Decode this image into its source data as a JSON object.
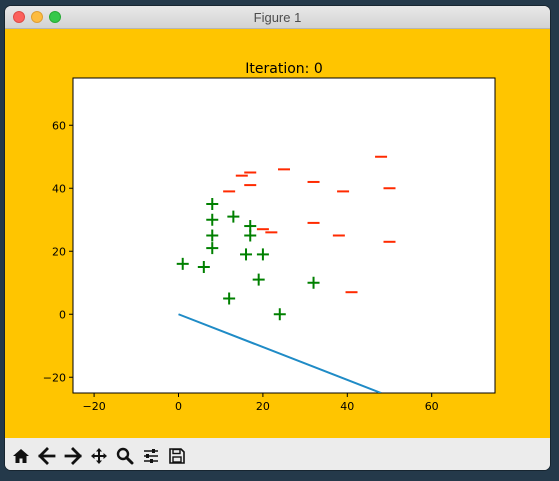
{
  "window": {
    "title": "Figure 1"
  },
  "figure": {
    "background_color": "#ffc500"
  },
  "chart_data": {
    "type": "scatter",
    "title": "Iteration: 0",
    "xlabel": "",
    "ylabel": "",
    "xlim": [
      -25,
      75
    ],
    "ylim": [
      -25,
      75
    ],
    "xticks": [
      -20,
      0,
      20,
      40,
      60
    ],
    "yticks": [
      -20,
      0,
      20,
      40,
      60
    ],
    "grid": false,
    "series": [
      {
        "marker": "_",
        "color": "#ff2a00",
        "points": [
          [
            12,
            39
          ],
          [
            15,
            44
          ],
          [
            17,
            45
          ],
          [
            17,
            41
          ],
          [
            25,
            46
          ],
          [
            32,
            42
          ],
          [
            39,
            39
          ],
          [
            48,
            50
          ],
          [
            50,
            40
          ],
          [
            20,
            27
          ],
          [
            22,
            26
          ],
          [
            32,
            29
          ],
          [
            38,
            25
          ],
          [
            50,
            23
          ],
          [
            41,
            7
          ]
        ]
      },
      {
        "marker": "+",
        "color": "#008000",
        "points": [
          [
            8,
            35
          ],
          [
            8,
            30
          ],
          [
            13,
            31
          ],
          [
            17,
            28
          ],
          [
            17,
            25
          ],
          [
            8,
            25
          ],
          [
            8,
            21
          ],
          [
            1,
            16
          ],
          [
            6,
            15
          ],
          [
            16,
            19
          ],
          [
            20,
            19
          ],
          [
            19,
            11
          ],
          [
            12,
            5
          ],
          [
            24,
            0
          ],
          [
            32,
            10
          ]
        ]
      },
      {
        "marker": "line",
        "color": "#1f8bc6",
        "points": [
          [
            0,
            0
          ],
          [
            48,
            -25
          ]
        ]
      }
    ]
  },
  "toolbar": {
    "buttons": [
      {
        "icon": "home-icon",
        "label": "Home"
      },
      {
        "icon": "arrow-left-icon",
        "label": "Back"
      },
      {
        "icon": "arrow-right-icon",
        "label": "Forward"
      },
      {
        "icon": "move-icon",
        "label": "Pan"
      },
      {
        "icon": "search-icon",
        "label": "Zoom"
      },
      {
        "icon": "sliders-icon",
        "label": "Configure subplots"
      },
      {
        "icon": "save-icon",
        "label": "Save"
      }
    ]
  }
}
